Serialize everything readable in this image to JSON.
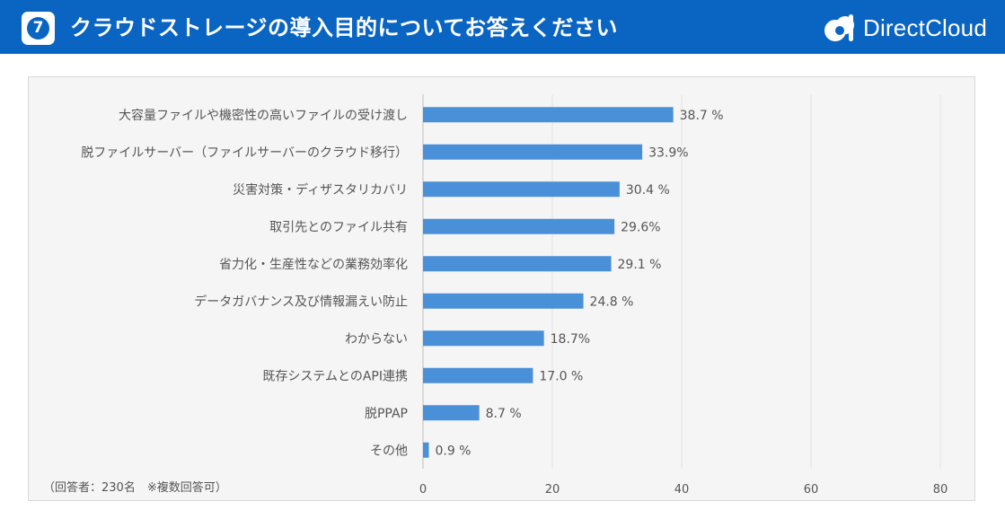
{
  "header": {
    "badge_number": "7",
    "title": "クラウドストレージの導入目的についてお答えください",
    "logo_text": "DirectCloud",
    "colors": {
      "header_bg": "#0a64c2",
      "bar": "#4a90d9"
    },
    "logo_icon": "cloud-d-icon"
  },
  "chart_data": {
    "type": "bar",
    "orientation": "horizontal",
    "categories": [
      "大容量ファイルや機密性の高いファイルの受け渡し",
      "脱ファイルサーバー（ファイルサーバーのクラウド移行）",
      "災害対策・ディザスタリカバリ",
      "取引先とのファイル共有",
      "省力化・生産性などの業務効率化",
      "データガバナンス及び情報漏えい防止",
      "わからない",
      "既存システムとのAPI連携",
      "脱PPAP",
      "その他"
    ],
    "values": [
      38.7,
      33.9,
      30.4,
      29.6,
      29.1,
      24.8,
      18.7,
      17.0,
      8.7,
      0.9
    ],
    "value_labels": [
      "38.7 %",
      "33.9%",
      "30.4 %",
      "29.6%",
      "29.1 %",
      "24.8 %",
      "18.7%",
      "17.0 %",
      "8.7 %",
      "0.9 %"
    ],
    "xlim": [
      0,
      80
    ],
    "xticks": [
      0,
      20,
      40,
      60,
      80
    ],
    "grid": true,
    "note": "（回答者：230名　※複数回答可）"
  }
}
